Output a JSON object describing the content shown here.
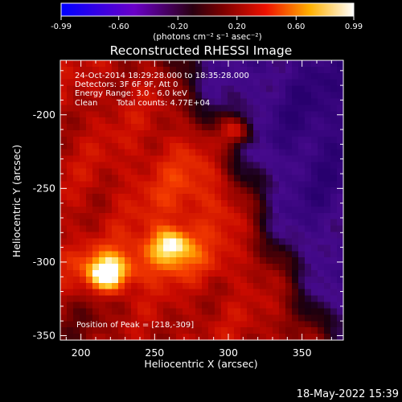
{
  "colorbar": {
    "ticks": [
      "-0.99",
      "-0.60",
      "-0.20",
      "0.20",
      "0.60",
      "0.99"
    ],
    "min": -0.99,
    "max": 0.99,
    "units": "(photons cm⁻² s⁻¹ asec⁻²)"
  },
  "chart_data": {
    "type": "heatmap",
    "title": "Reconstructed RHESSI Image",
    "xlabel": "Heliocentric X (arcsec)",
    "ylabel": "Heliocentric Y (arcsec)",
    "xlim": [
      186,
      378
    ],
    "ylim": [
      -353,
      -163
    ],
    "xticks": [
      200,
      250,
      300,
      350
    ],
    "yticks": [
      -200,
      -250,
      -300,
      -350
    ],
    "colormap": "rhessi-heat",
    "sources": [
      {
        "x": 218,
        "y": -309,
        "peak": 0.99
      },
      {
        "x": 261,
        "y": -288,
        "peak": 0.9
      },
      {
        "x": 305,
        "y": -211,
        "peak": 0.8
      }
    ],
    "annotations": {
      "time_range": "24-Oct-2014 18:29:28.000 to 18:35:28.000",
      "detectors": "Detectors: 3F 6F 9F, Att 0",
      "energy": "Energy Range: 3.0 - 6.0 keV",
      "algorithm": "Clean",
      "counts": "Total counts: 4.77E+04",
      "peak_position": "Position of Peak = [218,-309]"
    }
  },
  "footer": {
    "date": "18-May-2022 15:39"
  }
}
